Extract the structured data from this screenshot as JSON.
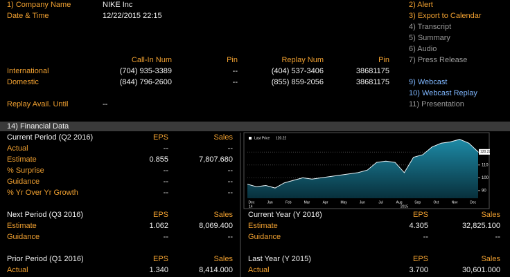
{
  "header": {
    "company_label": "1) Company Name",
    "company": "NIKE Inc",
    "datetime_label": "Date & Time",
    "datetime": "12/22/2015 22:15"
  },
  "menu": [
    "2) Alert",
    "3) Export to Calendar",
    "4) Transcript",
    "5) Summary",
    "6) Audio",
    "7) Press Release",
    "9) Webcast",
    "10) Webcast Replay",
    "11) Presentation"
  ],
  "call_table": {
    "columns": [
      "Call-In Num",
      "Pin",
      "Replay Num",
      "Pin"
    ],
    "rows": [
      {
        "label": "International",
        "cells": [
          "(704) 935-3389",
          "--",
          "(404) 537-3406",
          "38681175"
        ]
      },
      {
        "label": "Domestic",
        "cells": [
          "(844) 796-2600",
          "--",
          "(855) 859-2056",
          "38681175"
        ]
      }
    ]
  },
  "replay": {
    "label": "Replay Avail. Until",
    "value": "--"
  },
  "financial": {
    "title": "14) Financial Data",
    "sections": [
      {
        "title": "Current Period (Q2 2016)",
        "columns": [
          "EPS",
          "Sales"
        ],
        "rows": [
          {
            "label": "Actual",
            "cells": [
              "--",
              "--"
            ]
          },
          {
            "label": "Estimate",
            "cells": [
              "0.855",
              "7,807.680"
            ]
          },
          {
            "label": "% Surprise",
            "cells": [
              "--",
              "--"
            ]
          },
          {
            "label": "Guidance",
            "cells": [
              "--",
              "--"
            ]
          },
          {
            "label": "% Yr Over Yr Growth",
            "cells": [
              "--",
              "--"
            ]
          }
        ]
      },
      {
        "title": "Next Period (Q3 2016)",
        "columns": [
          "EPS",
          "Sales"
        ],
        "rows": [
          {
            "label": "Estimate",
            "cells": [
              "1.062",
              "8,069.400"
            ]
          },
          {
            "label": "Guidance",
            "cells": [
              "--",
              "--"
            ]
          }
        ]
      },
      {
        "title": "Prior Period (Q1 2016)",
        "columns": [
          "EPS",
          "Sales"
        ],
        "rows": [
          {
            "label": "Actual",
            "cells": [
              "1.340",
              "8,414.000"
            ]
          }
        ]
      },
      {
        "title": "Current Year (Y 2016)",
        "columns": [
          "EPS",
          "Sales"
        ],
        "rows": [
          {
            "label": "Estimate",
            "cells": [
              "4.305",
              "32,825.100"
            ]
          },
          {
            "label": "Guidance",
            "cells": [
              "--",
              "--"
            ]
          }
        ]
      },
      {
        "title": "Last Year (Y 2015)",
        "columns": [
          "EPS",
          "Sales"
        ],
        "rows": [
          {
            "label": "Actual",
            "cells": [
              "3.700",
              "30,601.000"
            ]
          }
        ]
      }
    ]
  },
  "chart_data": {
    "type": "line",
    "legend": "Last Price",
    "last_value": 120.22,
    "categories": [
      "Dec",
      null,
      "Jan",
      null,
      "Feb",
      null,
      "Mar",
      null,
      "Apr",
      null,
      "May",
      null,
      "Jun",
      null,
      "Jul",
      null,
      "Aug",
      null,
      "Sep",
      null,
      "Oct",
      null,
      "Nov",
      null,
      "Dec",
      null
    ],
    "first_year_label": "14",
    "year_label": "2015",
    "values": [
      95,
      93,
      94,
      92,
      96,
      98,
      100,
      99,
      100,
      101,
      102,
      103,
      104,
      106,
      112,
      113,
      112,
      104,
      116,
      118,
      124,
      127,
      128,
      130,
      127,
      120.22
    ],
    "color": "#e8f4f8",
    "fill": "#1b7f9a",
    "ylim": [
      84,
      132
    ],
    "yticks": [
      90,
      100,
      110,
      120
    ],
    "grid": true
  }
}
